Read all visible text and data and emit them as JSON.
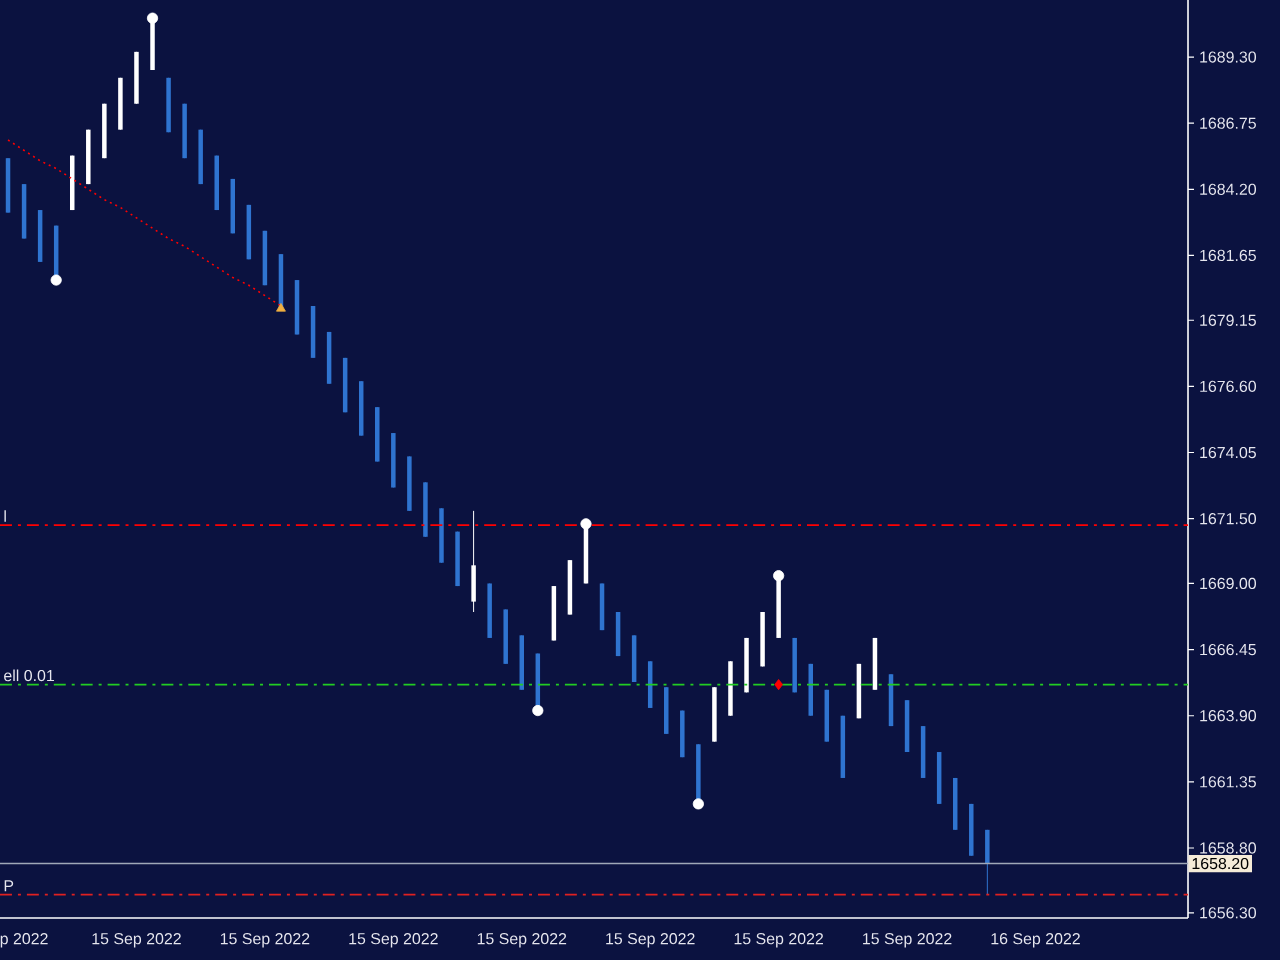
{
  "chart_data": {
    "type": "candlestick",
    "categories": [
      null,
      "p 2022",
      null,
      null,
      null,
      null,
      null,
      null,
      "15 Sep 2022",
      null,
      null,
      null,
      null,
      null,
      null,
      null,
      "15 Sep 2022",
      null,
      null,
      null,
      null,
      null,
      null,
      null,
      "15 Sep 2022",
      null,
      null,
      null,
      null,
      null,
      null,
      null,
      "15 Sep 2022",
      null,
      null,
      null,
      null,
      null,
      null,
      null,
      "15 Sep 2022",
      null,
      null,
      null,
      null,
      null,
      null,
      null,
      "15 Sep 2022",
      null,
      null,
      null,
      null,
      null,
      null,
      null,
      "15 Sep 2022",
      null,
      null,
      null,
      null,
      null,
      null,
      null,
      "16 Sep 2022",
      null,
      null,
      null,
      null,
      null,
      null,
      null,
      null,
      null
    ],
    "ohlc": [
      [
        1685.4,
        1685.4,
        1683.3,
        1683.3
      ],
      [
        1684.4,
        1684.4,
        1682.3,
        1682.3
      ],
      [
        1683.4,
        1683.4,
        1681.4,
        1681.4
      ],
      [
        1682.8,
        1682.8,
        1680.7,
        1680.7
      ],
      [
        1683.4,
        1685.5,
        1683.4,
        1685.5
      ],
      [
        1684.4,
        1686.5,
        1684.4,
        1686.5
      ],
      [
        1685.4,
        1687.5,
        1685.4,
        1687.5
      ],
      [
        1686.5,
        1688.5,
        1686.5,
        1688.5
      ],
      [
        1687.5,
        1689.5,
        1687.5,
        1689.5
      ],
      [
        1688.8,
        1690.8,
        1688.8,
        1690.8
      ],
      [
        1688.5,
        1688.5,
        1686.4,
        1686.4
      ],
      [
        1687.5,
        1687.5,
        1685.4,
        1685.4
      ],
      [
        1686.5,
        1686.5,
        1684.4,
        1684.4
      ],
      [
        1685.5,
        1685.5,
        1683.4,
        1683.4
      ],
      [
        1684.6,
        1684.6,
        1682.5,
        1682.5
      ],
      [
        1683.6,
        1683.6,
        1681.5,
        1681.5
      ],
      [
        1682.6,
        1682.6,
        1680.5,
        1680.5
      ],
      [
        1681.7,
        1681.7,
        1679.6,
        1679.6
      ],
      [
        1680.7,
        1680.7,
        1678.6,
        1678.6
      ],
      [
        1679.7,
        1679.7,
        1677.7,
        1677.7
      ],
      [
        1678.7,
        1678.7,
        1676.7,
        1676.7
      ],
      [
        1677.7,
        1677.7,
        1675.6,
        1675.6
      ],
      [
        1676.8,
        1676.8,
        1674.7,
        1674.7
      ],
      [
        1675.8,
        1675.8,
        1673.7,
        1673.7
      ],
      [
        1674.8,
        1674.8,
        1672.7,
        1672.7
      ],
      [
        1673.9,
        1673.9,
        1671.8,
        1671.8
      ],
      [
        1672.9,
        1672.9,
        1670.8,
        1670.8
      ],
      [
        1671.9,
        1671.9,
        1669.8,
        1669.8
      ],
      [
        1671.0,
        1671.0,
        1668.9,
        1668.9
      ],
      [
        1668.3,
        1671.8,
        1667.9,
        1669.7
      ],
      [
        1669.0,
        1669.0,
        1666.9,
        1666.9
      ],
      [
        1668.0,
        1668.0,
        1665.9,
        1665.9
      ],
      [
        1667.0,
        1667.0,
        1664.9,
        1664.9
      ],
      [
        1666.3,
        1666.3,
        1664.1,
        1664.1
      ],
      [
        1666.8,
        1668.9,
        1666.8,
        1668.9
      ],
      [
        1667.8,
        1669.9,
        1667.8,
        1669.9
      ],
      [
        1669.0,
        1671.3,
        1669.0,
        1671.3
      ],
      [
        1669.0,
        1669.0,
        1667.2,
        1667.2
      ],
      [
        1667.9,
        1667.9,
        1666.2,
        1666.2
      ],
      [
        1667.0,
        1667.0,
        1665.2,
        1665.2
      ],
      [
        1666.0,
        1666.0,
        1664.2,
        1664.2
      ],
      [
        1665.0,
        1665.0,
        1663.2,
        1663.2
      ],
      [
        1664.1,
        1664.1,
        1662.3,
        1662.3
      ],
      [
        1662.8,
        1662.8,
        1660.5,
        1660.5
      ],
      [
        1662.9,
        1665.0,
        1662.9,
        1665.0
      ],
      [
        1663.9,
        1666.0,
        1663.9,
        1666.0
      ],
      [
        1664.8,
        1666.9,
        1664.8,
        1666.9
      ],
      [
        1665.8,
        1667.9,
        1665.8,
        1667.9
      ],
      [
        1666.9,
        1669.3,
        1666.9,
        1669.3
      ],
      [
        1666.9,
        1666.9,
        1664.8,
        1664.8
      ],
      [
        1665.9,
        1665.9,
        1663.9,
        1663.9
      ],
      [
        1664.9,
        1664.9,
        1662.9,
        1662.9
      ],
      [
        1663.9,
        1663.9,
        1661.5,
        1661.5
      ],
      [
        1663.8,
        1665.9,
        1663.8,
        1665.9
      ],
      [
        1664.9,
        1666.9,
        1664.9,
        1666.9
      ],
      [
        1665.5,
        1665.5,
        1663.5,
        1663.5
      ],
      [
        1664.5,
        1664.5,
        1662.5,
        1662.5
      ],
      [
        1663.5,
        1663.5,
        1661.5,
        1661.5
      ],
      [
        1662.5,
        1662.5,
        1660.5,
        1660.5
      ],
      [
        1661.5,
        1661.5,
        1659.5,
        1659.5
      ],
      [
        1660.5,
        1660.5,
        1658.5,
        1658.5
      ],
      [
        1659.5,
        1659.5,
        1657.0,
        1658.2
      ],
      null,
      null,
      null,
      null,
      null,
      null,
      null,
      null,
      null,
      null,
      null,
      null
    ],
    "colors": [
      "#2f74d0",
      "#2f74d0",
      "#2f74d0",
      "#2f74d0",
      "#ffffff",
      "#ffffff",
      "#ffffff",
      "#ffffff",
      "#ffffff",
      "#ffffff",
      "#2f74d0",
      "#2f74d0",
      "#2f74d0",
      "#2f74d0",
      "#2f74d0",
      "#2f74d0",
      "#2f74d0",
      "#2f74d0",
      "#2f74d0",
      "#2f74d0",
      "#2f74d0",
      "#2f74d0",
      "#2f74d0",
      "#2f74d0",
      "#2f74d0",
      "#2f74d0",
      "#2f74d0",
      "#2f74d0",
      "#2f74d0",
      "#ffffff",
      "#2f74d0",
      "#2f74d0",
      "#2f74d0",
      "#2f74d0",
      "#ffffff",
      "#ffffff",
      "#ffffff",
      "#2f74d0",
      "#2f74d0",
      "#2f74d0",
      "#2f74d0",
      "#2f74d0",
      "#2f74d0",
      "#2f74d0",
      "#ffffff",
      "#ffffff",
      "#ffffff",
      "#ffffff",
      "#ffffff",
      "#2f74d0",
      "#2f74d0",
      "#2f74d0",
      "#2f74d0",
      "#ffffff",
      "#ffffff",
      "#2f74d0",
      "#2f74d0",
      "#2f74d0",
      "#2f74d0",
      "#2f74d0",
      "#2f74d0",
      "#2f74d0",
      null,
      null,
      null,
      null,
      null,
      null,
      null,
      null,
      null,
      null,
      null,
      null
    ],
    "series": [
      {
        "type": "line",
        "color": "#ff0000",
        "line_style": "dotted",
        "values": [
          1686.1,
          1685.7,
          1685.3,
          1685.0,
          1684.6,
          1684.2,
          1683.8,
          1683.5,
          1683.1,
          1682.7,
          1682.3,
          1682.0,
          1681.6,
          1681.2,
          1680.8,
          1680.5,
          1680.1,
          1679.7,
          null,
          null,
          null,
          null,
          null,
          null,
          null,
          null,
          null,
          null,
          null,
          null,
          null,
          null,
          null,
          null,
          null,
          null,
          null,
          null,
          null,
          null,
          null,
          null,
          null,
          null,
          null,
          null,
          null,
          null,
          null,
          null,
          null,
          null,
          null,
          null,
          null,
          null,
          null,
          null,
          null,
          null,
          null,
          null,
          null,
          null,
          null,
          null,
          null,
          null,
          null,
          null,
          null,
          null,
          null,
          null
        ]
      },
      {
        "type": "scatter",
        "color": "#f0b040",
        "marker": "triangle",
        "values": [
          null,
          null,
          null,
          null,
          null,
          null,
          null,
          null,
          null,
          null,
          null,
          null,
          null,
          null,
          null,
          null,
          null,
          1679.6,
          null,
          null,
          null,
          null,
          null,
          null,
          null,
          null,
          null,
          null,
          null,
          null,
          null,
          null,
          null,
          null,
          null,
          null,
          null,
          null,
          null,
          null,
          null,
          null,
          null,
          null,
          null,
          null,
          null,
          null,
          null,
          null,
          null,
          null,
          null,
          null,
          null,
          null,
          null,
          null,
          null,
          null,
          null,
          null,
          null,
          null,
          null,
          null,
          null,
          null,
          null,
          null,
          null,
          null,
          null,
          null
        ]
      },
      {
        "type": "scatter",
        "color": "#ff0000",
        "marker": "diamond",
        "values": [
          null,
          null,
          null,
          null,
          null,
          null,
          null,
          null,
          null,
          null,
          null,
          null,
          null,
          null,
          null,
          null,
          null,
          null,
          null,
          null,
          null,
          null,
          null,
          null,
          null,
          null,
          null,
          null,
          null,
          null,
          null,
          null,
          null,
          null,
          null,
          null,
          null,
          null,
          null,
          null,
          null,
          null,
          null,
          null,
          null,
          null,
          null,
          null,
          1665.1,
          null,
          null,
          null,
          null,
          null,
          null,
          null,
          null,
          null,
          null,
          null,
          null,
          null,
          null,
          null,
          null,
          null,
          null,
          null,
          null,
          null,
          null,
          null,
          null,
          null
        ]
      },
      {
        "type": "scatter",
        "color": "#ffffff",
        "marker": "circle",
        "values": [
          null,
          null,
          null,
          1680.7,
          null,
          null,
          null,
          null,
          null,
          1690.8,
          null,
          null,
          null,
          null,
          null,
          null,
          null,
          null,
          null,
          null,
          null,
          null,
          null,
          null,
          null,
          null,
          null,
          null,
          null,
          null,
          null,
          null,
          null,
          1664.1,
          null,
          null,
          1671.3,
          null,
          null,
          null,
          null,
          null,
          null,
          1660.5,
          null,
          null,
          null,
          null,
          1669.3,
          null,
          null,
          null,
          null,
          null,
          null,
          null,
          null,
          null,
          null,
          null,
          null,
          null,
          null,
          null,
          null,
          null,
          null,
          null,
          null,
          null,
          null,
          null,
          null,
          null
        ]
      }
    ],
    "ylim": [
      1656.1,
      1691.5
    ],
    "yticks": [
      {
        "value": 1689.3,
        "label": "1689.30"
      },
      {
        "value": 1686.75,
        "label": "1686.75"
      },
      {
        "value": 1684.2,
        "label": "1684.20"
      },
      {
        "value": 1681.65,
        "label": "1681.65"
      },
      {
        "value": 1679.15,
        "label": "1679.15"
      },
      {
        "value": 1676.6,
        "label": "1676.60"
      },
      {
        "value": 1674.05,
        "label": "1674.05"
      },
      {
        "value": 1671.5,
        "label": "1671.50"
      },
      {
        "value": 1669.0,
        "label": "1669.00"
      },
      {
        "value": 1666.45,
        "label": "1666.45"
      },
      {
        "value": 1663.9,
        "label": "1663.90"
      },
      {
        "value": 1661.35,
        "label": "1661.35"
      },
      {
        "value": 1658.8,
        "label": "1658.80"
      },
      {
        "value": 1656.3,
        "label": "1656.30"
      }
    ],
    "ref_lines": [
      {
        "axis": "y",
        "value": 1671.25,
        "label": "l",
        "color": "#ff0000",
        "line_style": "dashed"
      },
      {
        "axis": "y",
        "value": 1665.1,
        "label": "ell 0.01",
        "color": "#22cc22",
        "line_style": "dashed"
      },
      {
        "axis": "y",
        "value": 1657.0,
        "label": "P",
        "color": "#e02020",
        "line_style": "dashed"
      },
      {
        "axis": "y",
        "value": 1658.2,
        "label": "1658.20",
        "color": "#a0a8b8",
        "line_style": "solid"
      }
    ],
    "grid": false
  }
}
